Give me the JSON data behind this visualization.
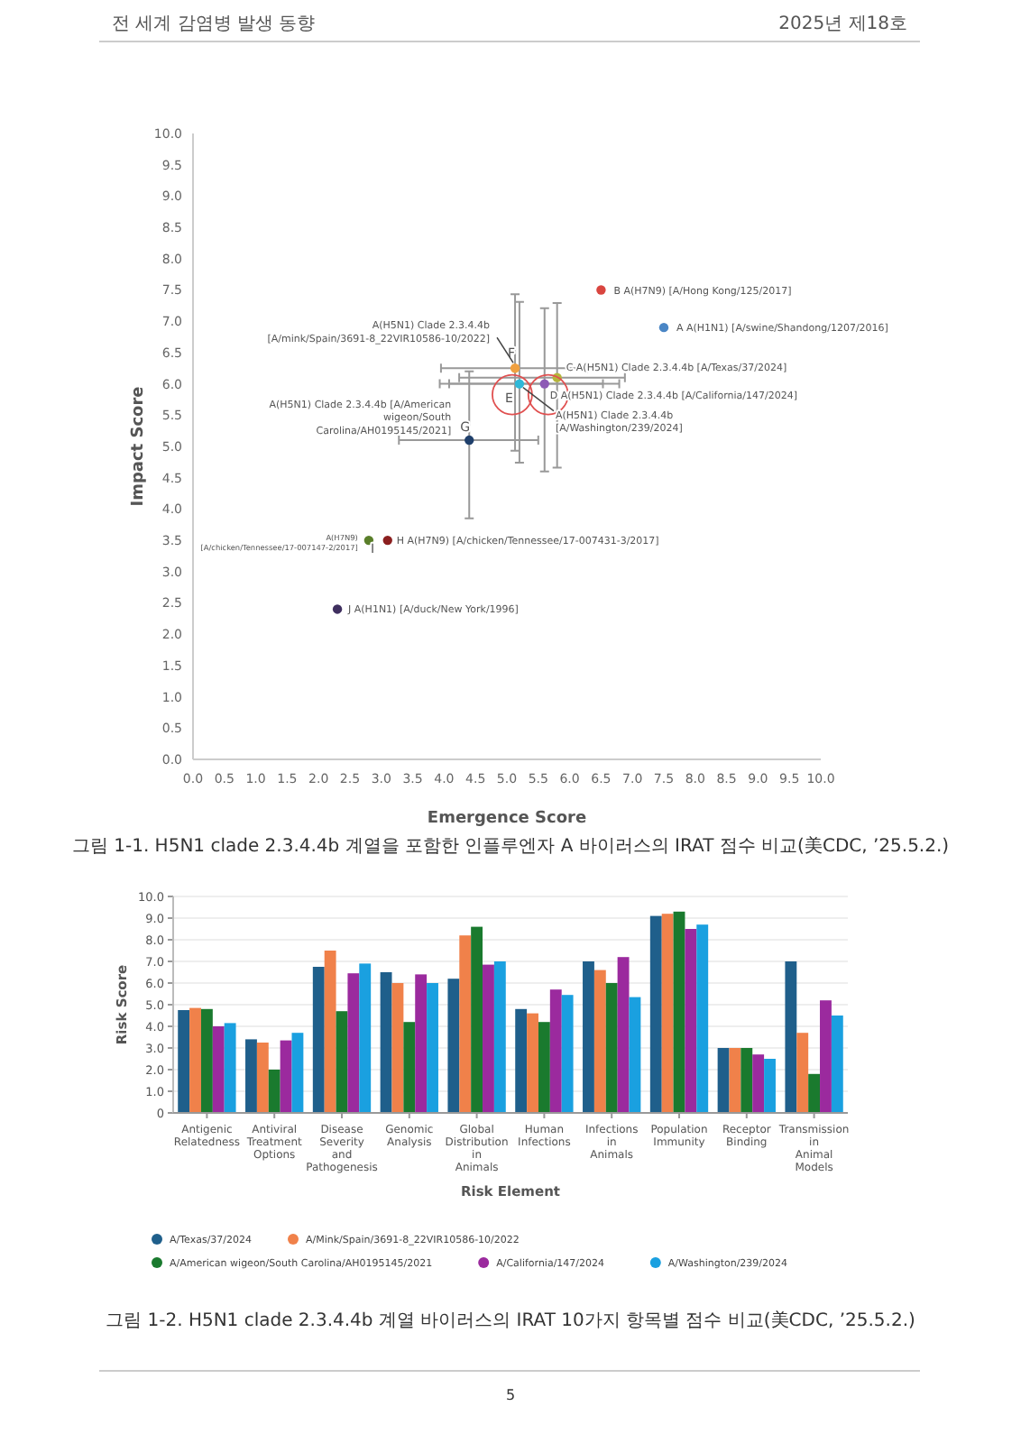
{
  "chart_data": [
    {
      "type": "scatter",
      "title": "그림 1-1. H5N1 clade 2.3.4.4b 계열을 포함한 인플루엔자 A 바이러스의 IRAT 점수 비교(美CDC, ’25.5.2.)",
      "xlabel": "Emergence Score",
      "ylabel": "Impact Score",
      "marker": "circle",
      "x": [
        7.5,
        6.5,
        5.8,
        5.6,
        5.2,
        5.13,
        4.4,
        3.1,
        2.8,
        2.3
      ],
      "values": [
        6.9,
        7.5,
        6.1,
        6.0,
        6.0,
        6.25,
        5.1,
        3.5,
        3.5,
        2.4
      ],
      "colors": [
        "#4a86c5",
        "#d9453f",
        "#b5b53a",
        "#8e5bb5",
        "#2fb8d8",
        "#f0a040",
        "#1f3f6b",
        "#8b1f1f",
        "#5a7f2a",
        "#3f2f5f"
      ],
      "xerrors": [
        null,
        null,
        [
          4.24,
          6.88
        ],
        [
          3.93,
          6.79
        ],
        [
          4.08,
          6.53
        ],
        [
          3.95,
          6.28
        ],
        [
          3.28,
          5.5
        ],
        null,
        null,
        null
      ],
      "errors": [
        null,
        null,
        [
          4.66,
          7.29
        ],
        [
          4.6,
          7.21
        ],
        [
          4.74,
          7.31
        ],
        [
          4.93,
          7.43
        ],
        [
          3.85,
          6.2
        ],
        null,
        null,
        null
      ],
      "xlim": [
        0,
        10
      ],
      "ylim": [
        0,
        10
      ],
      "xticks": [
        {
          "value": 0,
          "label": "0.0"
        },
        0.5,
        {
          "value": 1,
          "label": "1.0"
        },
        1.5,
        {
          "value": 2,
          "label": "2.0"
        },
        2.5,
        {
          "value": 3,
          "label": "3.0"
        },
        3.5,
        {
          "value": 4,
          "label": "4.0"
        },
        4.5,
        {
          "value": 5,
          "label": "5.0"
        },
        5.5,
        {
          "value": 6,
          "label": "6.0"
        },
        6.5,
        {
          "value": 7,
          "label": "7.0"
        },
        7.5,
        {
          "value": 8,
          "label": "8.0"
        },
        8.5,
        {
          "value": 9,
          "label": "9.0"
        },
        9.5,
        {
          "value": 10,
          "label": "10.0"
        }
      ],
      "yticks": [
        {
          "value": 0,
          "label": "0.0"
        },
        0.5,
        {
          "value": 1,
          "label": "1.0"
        },
        1.5,
        {
          "value": 2,
          "label": "2.0"
        },
        2.5,
        {
          "value": 3,
          "label": "3.0"
        },
        3.5,
        {
          "value": 4,
          "label": "4.0"
        },
        4.5,
        {
          "value": 5,
          "label": "5.0"
        },
        5.5,
        {
          "value": 6,
          "label": "6.0"
        },
        6.5,
        {
          "value": 7,
          "label": "7.0"
        },
        7.5,
        {
          "value": 8,
          "label": "8.0"
        },
        8.5,
        {
          "value": 9,
          "label": "9.0"
        },
        9.5,
        {
          "value": 10,
          "label": "10.0"
        }
      ],
      "annotations": [
        "전 세계 감염병 발생 동향",
        "2025년 제18호",
        {
          "text": "B A(H7N9) [A/Hong Kong/125/2017]",
          "x": 6.5,
          "y": 7.5
        },
        {
          "text": "A A(H1N1) [A/swine/Shandong/1207/2016]",
          "x": 7.5,
          "y": 6.9
        },
        {
          "text": "C A(H5N1) Clade 2.3.4.4b [A/Texas/37/2024]",
          "x": 5.8,
          "y": 6.1
        },
        {
          "text": "D A(H5N1) Clade 2.3.4.4b [A/California/147/2024]",
          "x": 5.6,
          "y": 6.0
        },
        {
          "text": "E",
          "x": 5.2,
          "y": 6.0
        },
        {
          "text": "A(H5N1) Clade 2.3.4.4b [A/Washington/239/2024]",
          "x": 5.2,
          "y": 6.0
        },
        {
          "text": "F",
          "x": 5.13,
          "y": 6.25
        },
        {
          "text": "A(H5N1) Clade 2.3.4.4b [A/mink/Spain/3691-8_22VIR10586-10/2022]",
          "x": 5.13,
          "y": 6.25
        },
        {
          "text": "G",
          "x": 4.4,
          "y": 5.1
        },
        {
          "text": "A(H5N1) Clade 2.3.4.4b [A/American wigeon/South Carolina/AH0195145/2021]",
          "x": 4.4,
          "y": 5.1
        },
        {
          "text": "H A(H7N9) [A/chicken/Tennessee/17-007431-3/2017]",
          "x": 3.1,
          "y": 3.5
        },
        {
          "text": "I",
          "x": 2.8,
          "y": 3.5
        },
        {
          "text": "A(H7N9) [A/chicken/Tennessee/17-007147-2/2017]",
          "x": 2.8,
          "y": 3.5
        },
        {
          "text": "J A(H1N1) [A/duck/New York/1996]",
          "x": 2.3,
          "y": 2.4
        }
      ]
    },
    {
      "type": "bar",
      "title": "그림 1-2. H5N1 clade 2.3.4.4b 계열 바이러스의 IRAT 10가지 항목별 점수 비교(美CDC, ’25.5.2.)",
      "xlabel": "Risk Element",
      "ylabel": "Risk Score",
      "grid": "y",
      "legend": "bottom",
      "categories": [
        "Antigenic Relatedness",
        "Antiviral Treatment Options",
        "Disease Severity and Pathogenesis",
        "Genomic Analysis",
        "Global Distribution in Animals",
        "Human Infections",
        "Infections in Animals",
        "Population Immunity",
        "Receptor Binding",
        "Transmission in Animal Models"
      ],
      "series": [
        {
          "name": "A/Texas/37/2024",
          "color": "#1f5f8b",
          "values": [
            4.75,
            3.4,
            6.75,
            6.5,
            6.2,
            4.8,
            7.0,
            9.1,
            3.0,
            7.0
          ]
        },
        {
          "name": "A/Mink/Spain/3691-8_22VIR10586-10/2022",
          "color": "#f0814a",
          "values": [
            4.85,
            3.25,
            7.5,
            6.0,
            8.2,
            4.6,
            6.6,
            9.2,
            3.0,
            3.7
          ]
        },
        {
          "name": "A/American wigeon/South Carolina/AH0195145/2021",
          "color": "#1a7a2e",
          "values": [
            4.8,
            2.0,
            4.7,
            4.2,
            8.6,
            4.2,
            6.0,
            9.3,
            3.0,
            1.8
          ]
        },
        {
          "name": "A/California/147/2024",
          "color": "#9b2a9e",
          "values": [
            4.0,
            3.35,
            6.45,
            6.4,
            6.85,
            5.7,
            7.2,
            8.5,
            2.7,
            5.2
          ]
        },
        {
          "name": "A/Washington/239/2024",
          "color": "#1aa0e0",
          "values": [
            4.15,
            3.7,
            6.9,
            6.0,
            7.0,
            5.45,
            5.35,
            8.7,
            2.5,
            4.5
          ]
        }
      ],
      "ylim": [
        0,
        10
      ],
      "yticks": [
        0,
        {
          "value": 1,
          "label": "1.0"
        },
        {
          "value": 2,
          "label": "2.0"
        },
        {
          "value": 3,
          "label": "3.0"
        },
        {
          "value": 4,
          "label": "4.0"
        },
        {
          "value": 5,
          "label": "5.0"
        },
        {
          "value": 6,
          "label": "6.0"
        },
        {
          "value": 7,
          "label": "7.0"
        },
        {
          "value": 8,
          "label": "8.0"
        },
        {
          "value": 9,
          "label": "9.0"
        },
        {
          "value": 10,
          "label": "10.0"
        }
      ],
      "annotations": [
        "5"
      ]
    }
  ]
}
